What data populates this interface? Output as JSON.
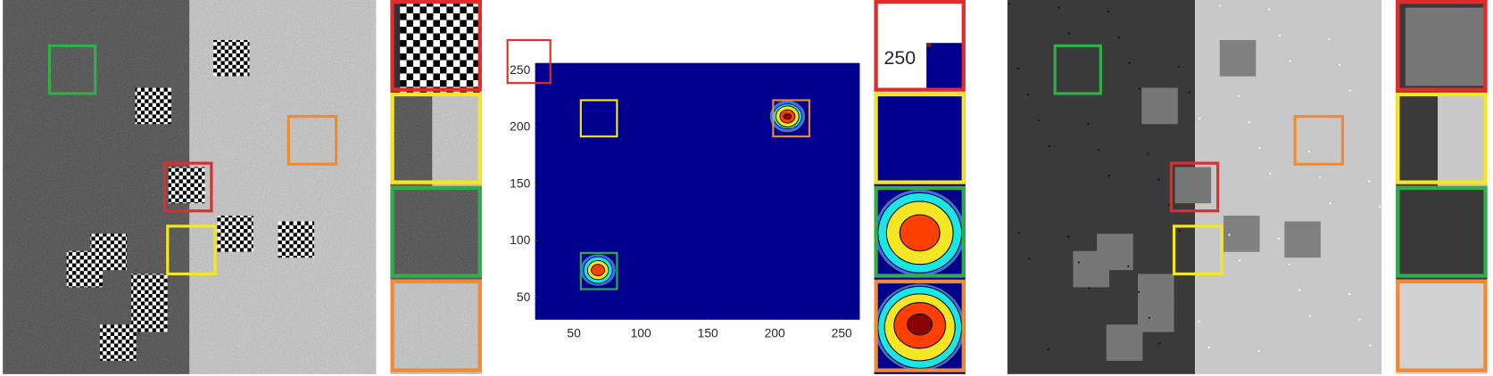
{
  "chart_data": {
    "type": "contour",
    "xlim": [
      21,
      263.5
    ],
    "ylim": [
      30.7,
      256.7
    ],
    "xticks": [
      50,
      100,
      150,
      200,
      250
    ],
    "yticks": [
      50,
      100,
      150,
      200,
      250
    ]
  },
  "inset_label": "250"
}
